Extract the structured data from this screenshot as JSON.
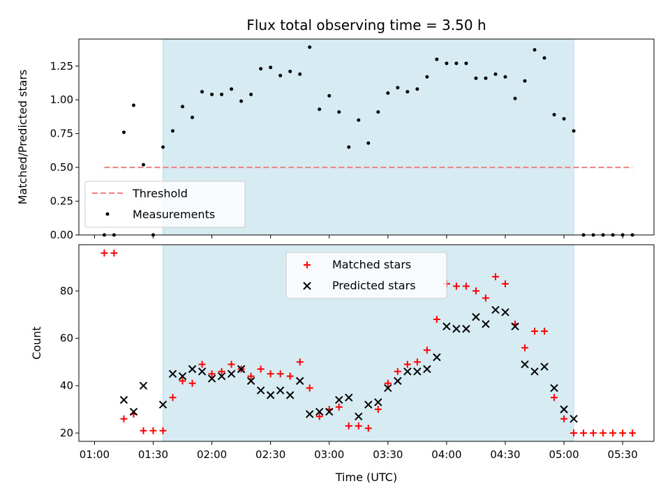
{
  "chart_data": [
    {
      "type": "scatter",
      "title": "Flux total observing time = 3.50 h",
      "xlabel": "",
      "ylabel": "Matched/Predicted stars",
      "ylim": [
        0,
        1.45
      ],
      "yticks": [
        "0.00",
        "0.25",
        "0.50",
        "0.75",
        "1.00",
        "1.25"
      ],
      "shaded_interval": [
        "01:35",
        "05:05"
      ],
      "threshold": {
        "name": "Threshold",
        "value": 0.5,
        "x_start": "01:05",
        "x_end": "05:35",
        "color": "#f08080"
      },
      "series": [
        {
          "name": "Measurements",
          "x": [
            "01:05",
            "01:10",
            "01:15",
            "01:20",
            "01:25",
            "01:30",
            "01:35",
            "01:40",
            "01:45",
            "01:50",
            "01:55",
            "02:00",
            "02:05",
            "02:10",
            "02:15",
            "02:20",
            "02:25",
            "02:30",
            "02:35",
            "02:40",
            "02:45",
            "02:50",
            "02:55",
            "03:00",
            "03:05",
            "03:10",
            "03:15",
            "03:20",
            "03:25",
            "03:30",
            "03:35",
            "03:40",
            "03:45",
            "03:50",
            "03:55",
            "04:00",
            "04:05",
            "04:10",
            "04:15",
            "04:20",
            "04:25",
            "04:30",
            "04:35",
            "04:40",
            "04:45",
            "04:50",
            "04:55",
            "05:00",
            "05:05",
            "05:10",
            "05:15",
            "05:20",
            "05:25",
            "05:30",
            "05:35"
          ],
          "y": [
            0,
            0,
            0.76,
            0.96,
            0.52,
            0,
            0.65,
            0.77,
            0.95,
            0.87,
            1.06,
            1.04,
            1.04,
            1.08,
            0.99,
            1.04,
            1.23,
            1.24,
            1.18,
            1.21,
            1.19,
            1.39,
            0.93,
            1.03,
            0.91,
            0.65,
            0.85,
            0.68,
            0.91,
            1.05,
            1.09,
            1.06,
            1.08,
            1.17,
            1.3,
            1.27,
            1.27,
            1.27,
            1.16,
            1.16,
            1.19,
            1.17,
            1.01,
            1.14,
            1.37,
            1.31,
            0.89,
            0.86,
            0.77,
            0,
            0,
            0,
            0,
            0,
            0
          ]
        }
      ]
    },
    {
      "type": "scatter",
      "title": "",
      "xlabel": "Time (UTC)",
      "ylabel": "Count",
      "ylim": [
        16.5,
        99.5
      ],
      "yticks": [
        "20",
        "40",
        "60",
        "80"
      ],
      "xticks": [
        "01:00",
        "01:30",
        "02:00",
        "02:30",
        "03:00",
        "03:30",
        "04:00",
        "04:30",
        "05:00",
        "05:30"
      ],
      "shaded_interval": [
        "01:35",
        "05:05"
      ],
      "series": [
        {
          "name": "Matched stars",
          "marker": "+",
          "color": "#ff0000",
          "x": [
            "01:05",
            "01:10",
            "01:15",
            "01:20",
            "01:25",
            "01:30",
            "01:35",
            "01:40",
            "01:45",
            "01:50",
            "01:55",
            "02:00",
            "02:05",
            "02:10",
            "02:15",
            "02:20",
            "02:25",
            "02:30",
            "02:35",
            "02:40",
            "02:45",
            "02:50",
            "02:55",
            "03:00",
            "03:05",
            "03:10",
            "03:15",
            "03:20",
            "03:25",
            "03:30",
            "03:35",
            "03:40",
            "03:45",
            "03:50",
            "03:55",
            "04:00",
            "04:05",
            "04:10",
            "04:15",
            "04:20",
            "04:25",
            "04:30",
            "04:35",
            "04:40",
            "04:45",
            "04:50",
            "04:55",
            "05:00",
            "05:05",
            "05:10",
            "05:15",
            "05:20",
            "05:25",
            "05:30",
            "05:35"
          ],
          "y": [
            96,
            96,
            26,
            28,
            21,
            21,
            21,
            35,
            42,
            41,
            49,
            45,
            46,
            49,
            47,
            44,
            47,
            45,
            45,
            44,
            50,
            39,
            27,
            30,
            31,
            23,
            23,
            22,
            30,
            41,
            46,
            49,
            50,
            55,
            68,
            83,
            82,
            82,
            80,
            77,
            86,
            83,
            66,
            56,
            63,
            63,
            35,
            26,
            20,
            20,
            20,
            20,
            20,
            20,
            20
          ]
        },
        {
          "name": "Predicted stars",
          "marker": "x",
          "color": "#000000",
          "x": [
            "01:15",
            "01:20",
            "01:25",
            "01:35",
            "01:40",
            "01:45",
            "01:50",
            "01:55",
            "02:00",
            "02:05",
            "02:10",
            "02:15",
            "02:20",
            "02:25",
            "02:30",
            "02:35",
            "02:40",
            "02:45",
            "02:50",
            "02:55",
            "03:00",
            "03:05",
            "03:10",
            "03:15",
            "03:20",
            "03:25",
            "03:30",
            "03:35",
            "03:40",
            "03:45",
            "03:50",
            "03:55",
            "04:00",
            "04:05",
            "04:10",
            "04:15",
            "04:20",
            "04:25",
            "04:30",
            "04:35",
            "04:40",
            "04:45",
            "04:50",
            "04:55",
            "05:00",
            "05:05"
          ],
          "y": [
            34,
            29,
            40,
            32,
            45,
            44,
            47,
            46,
            43,
            44,
            45,
            47,
            42,
            38,
            36,
            38,
            36,
            42,
            28,
            29,
            29,
            34,
            35,
            27,
            32,
            33,
            39,
            42,
            46,
            46,
            47,
            52,
            65,
            64,
            64,
            69,
            66,
            72,
            71,
            65,
            49,
            46,
            48,
            39,
            30,
            26
          ]
        }
      ]
    }
  ]
}
